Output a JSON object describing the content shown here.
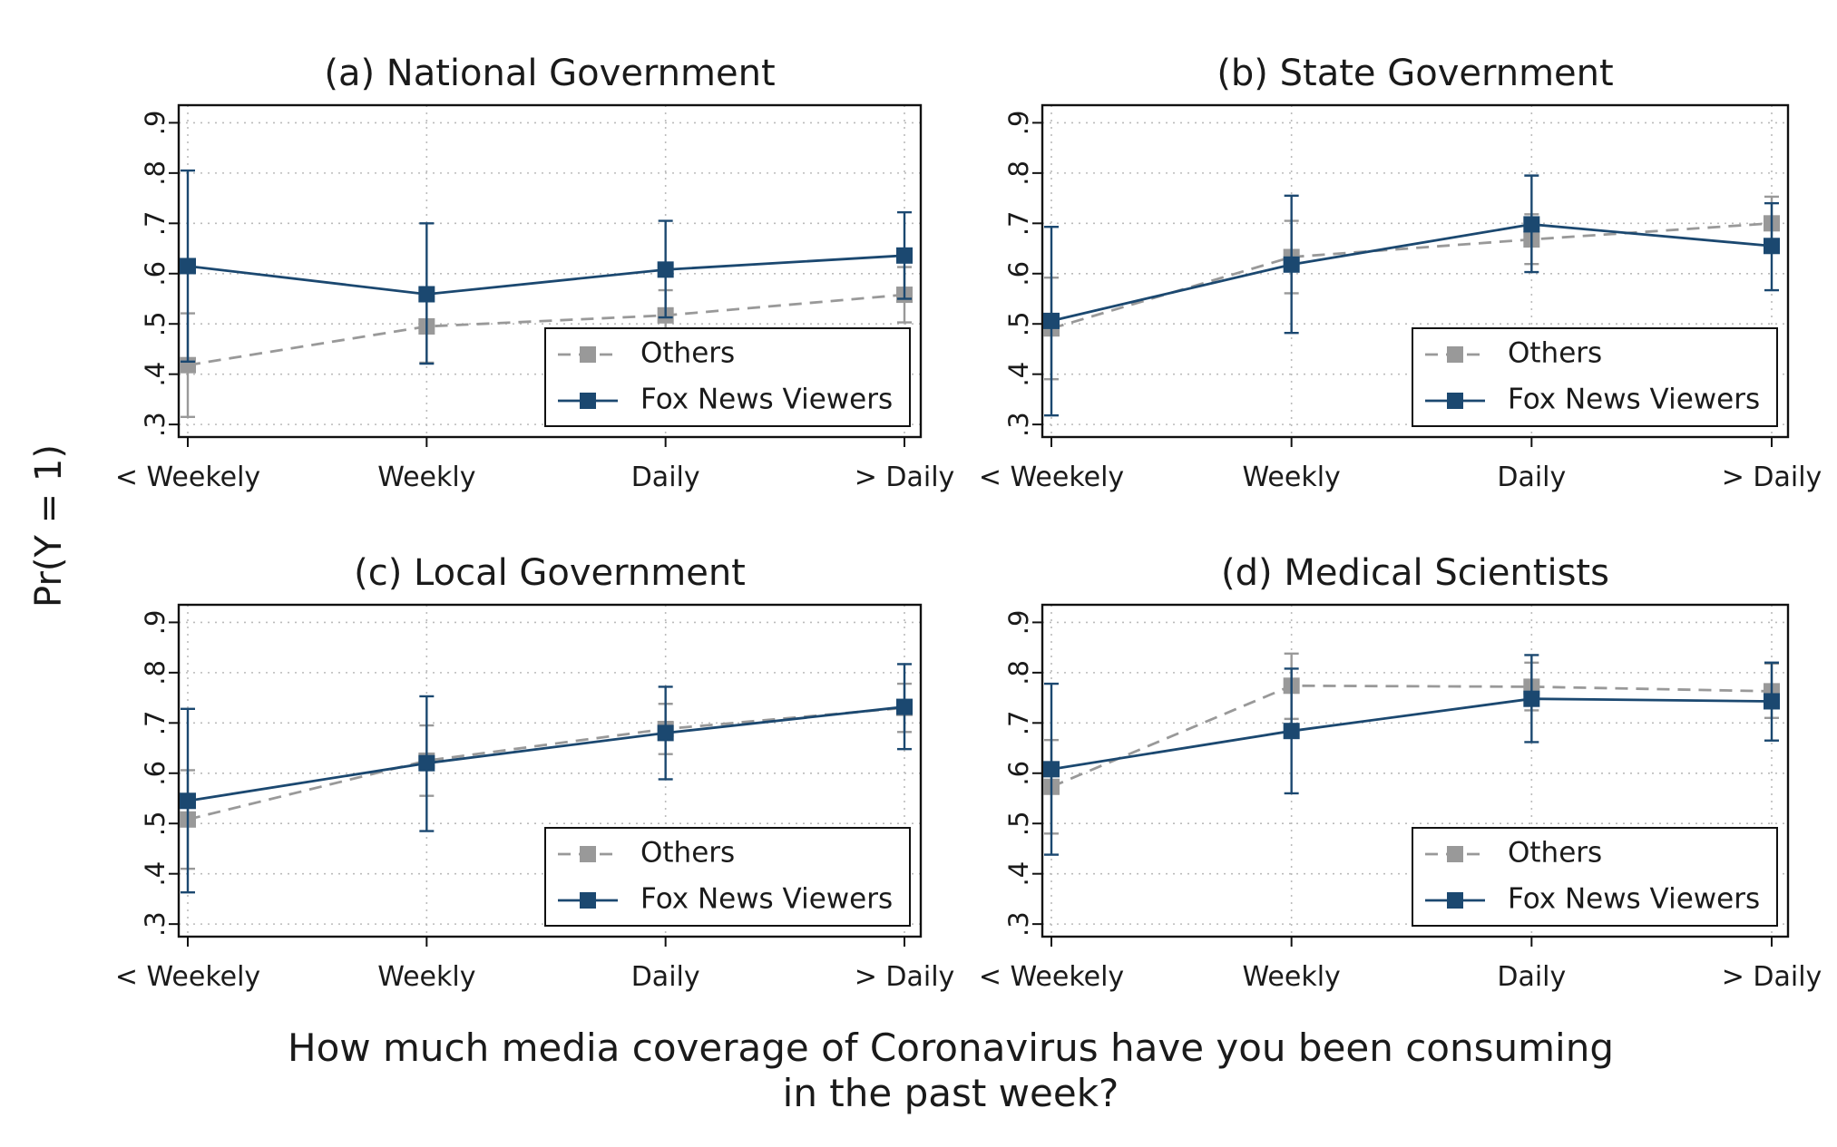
{
  "y_title": "Pr(Y = 1)",
  "x_title_line1": "How much media coverage of Coronavirus have you been consuming",
  "x_title_line2": "in the past week?",
  "colors": {
    "others": "#999999",
    "fox": "#1b4870"
  },
  "chart_data": [
    {
      "type": "line",
      "title": "(a) National Government",
      "categories": [
        "< Weekely",
        "Weekly",
        "Daily",
        "> Daily"
      ],
      "yticks": [
        ".3",
        ".4",
        ".5",
        ".6",
        ".7",
        ".8",
        ".9"
      ],
      "ylim": [
        0.275,
        0.935
      ],
      "grid": true,
      "legend_position": "bottom-right",
      "series": [
        {
          "name": "Others",
          "values": [
            0.418,
            0.495,
            0.517,
            0.558
          ],
          "lower": [
            0.315,
            0.423,
            0.467,
            0.503
          ],
          "upper": [
            0.521,
            0.568,
            0.567,
            0.613
          ]
        },
        {
          "name": "Fox News Viewers",
          "values": [
            0.615,
            0.559,
            0.608,
            0.636
          ],
          "lower": [
            0.425,
            0.421,
            0.513,
            0.55
          ],
          "upper": [
            0.805,
            0.7,
            0.705,
            0.722
          ]
        }
      ]
    },
    {
      "type": "line",
      "title": "(b) State Government",
      "categories": [
        "< Weekely",
        "Weekly",
        "Daily",
        "> Daily"
      ],
      "yticks": [
        ".3",
        ".4",
        ".5",
        ".6",
        ".7",
        ".8",
        ".9"
      ],
      "ylim": [
        0.275,
        0.935
      ],
      "grid": true,
      "legend_position": "bottom-right",
      "series": [
        {
          "name": "Others",
          "values": [
            0.491,
            0.633,
            0.668,
            0.7
          ],
          "lower": [
            0.39,
            0.561,
            0.619,
            0.645
          ],
          "upper": [
            0.592,
            0.705,
            0.718,
            0.753
          ]
        },
        {
          "name": "Fox News Viewers",
          "values": [
            0.506,
            0.618,
            0.698,
            0.655
          ],
          "lower": [
            0.318,
            0.482,
            0.603,
            0.567
          ],
          "upper": [
            0.693,
            0.755,
            0.795,
            0.74
          ]
        }
      ]
    },
    {
      "type": "line",
      "title": "(c) Local Government",
      "categories": [
        "< Weekely",
        "Weekly",
        "Daily",
        "> Daily"
      ],
      "yticks": [
        ".3",
        ".4",
        ".5",
        ".6",
        ".7",
        ".8",
        ".9"
      ],
      "ylim": [
        0.275,
        0.935
      ],
      "grid": true,
      "legend_position": "bottom-right",
      "series": [
        {
          "name": "Others",
          "values": [
            0.508,
            0.625,
            0.688,
            0.73
          ],
          "lower": [
            0.41,
            0.555,
            0.638,
            0.682
          ],
          "upper": [
            0.606,
            0.695,
            0.738,
            0.778
          ]
        },
        {
          "name": "Fox News Viewers",
          "values": [
            0.545,
            0.62,
            0.68,
            0.732
          ],
          "lower": [
            0.363,
            0.485,
            0.588,
            0.648
          ],
          "upper": [
            0.728,
            0.753,
            0.772,
            0.817
          ]
        }
      ]
    },
    {
      "type": "line",
      "title": "(d) Medical Scientists",
      "categories": [
        "< Weekely",
        "Weekly",
        "Daily",
        "> Daily"
      ],
      "yticks": [
        ".3",
        ".4",
        ".5",
        ".6",
        ".7",
        ".8",
        ".9"
      ],
      "ylim": [
        0.275,
        0.935
      ],
      "grid": true,
      "legend_position": "bottom-right",
      "series": [
        {
          "name": "Others",
          "values": [
            0.573,
            0.774,
            0.772,
            0.763
          ],
          "lower": [
            0.48,
            0.708,
            0.725,
            0.71
          ],
          "upper": [
            0.666,
            0.838,
            0.82,
            0.818
          ]
        },
        {
          "name": "Fox News Viewers",
          "values": [
            0.608,
            0.684,
            0.748,
            0.743
          ],
          "lower": [
            0.438,
            0.56,
            0.662,
            0.665
          ],
          "upper": [
            0.778,
            0.808,
            0.835,
            0.82
          ]
        }
      ]
    }
  ]
}
